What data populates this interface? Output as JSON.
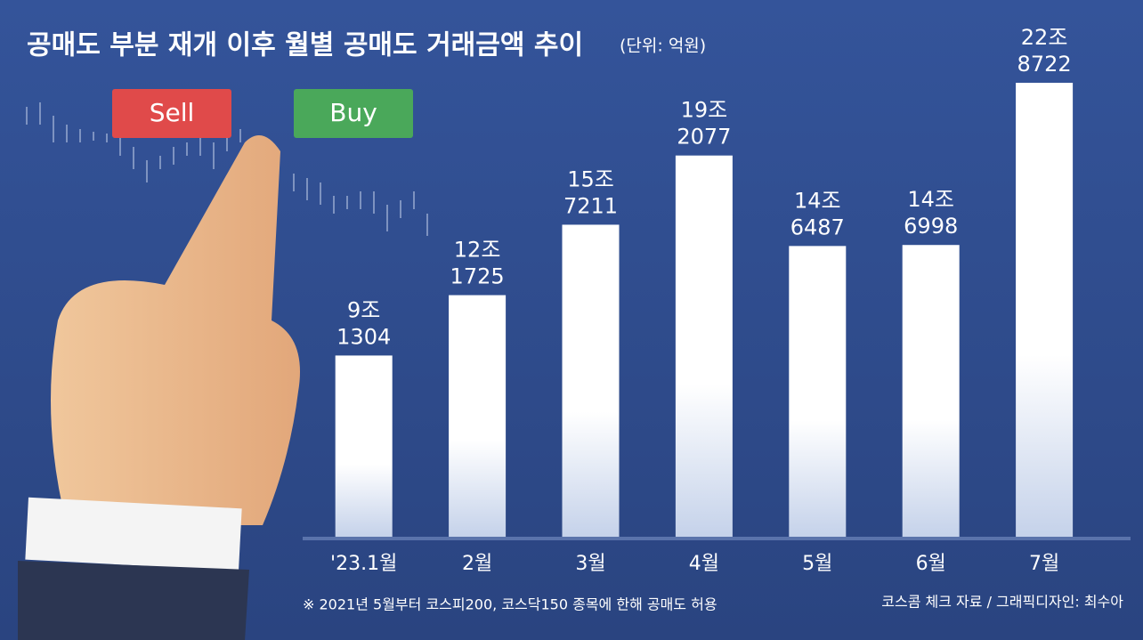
{
  "chart_data": {
    "type": "bar",
    "title": "공매도 부분 재개 이후 월별 공매도 거래금액 추이",
    "subtitle": "(단위: 억원)",
    "categories": [
      "'23.1월",
      "2월",
      "3월",
      "4월",
      "5월",
      "6월",
      "7월"
    ],
    "values": [
      91304,
      121725,
      157211,
      192077,
      146487,
      146998,
      228722
    ],
    "value_labels": [
      [
        "9조",
        "1304"
      ],
      [
        "12조",
        "1725"
      ],
      [
        "15조",
        "7211"
      ],
      [
        "19조",
        "2077"
      ],
      [
        "14조",
        "6487"
      ],
      [
        "14조",
        "6998"
      ],
      [
        "22조",
        "8722"
      ]
    ],
    "color": "#ffffff",
    "illustration_labels": [
      "Sell",
      "Buy"
    ],
    "note": "※ 2021년 5월부터 코스피200, 코스닥150 종목에 한해 공매도 허용",
    "source": "코스콤 체크 자료 / 그래픽디자인: 최수아"
  }
}
